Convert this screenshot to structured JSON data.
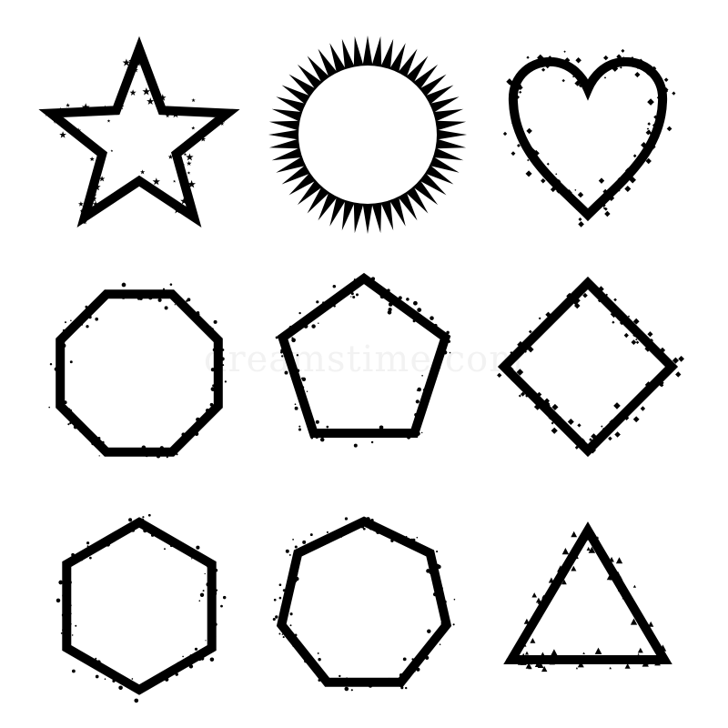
{
  "colors": {
    "background": "#ffffff",
    "stroke": "#000000"
  },
  "watermark": "dreamstime.com",
  "shapes": [
    {
      "name": "star-frame-icon",
      "kind": "star"
    },
    {
      "name": "sunburst-circle-frame-icon",
      "kind": "sunburst"
    },
    {
      "name": "heart-frame-icon",
      "kind": "heart"
    },
    {
      "name": "octagon-frame-icon",
      "kind": "octagon"
    },
    {
      "name": "pentagon-frame-icon",
      "kind": "pentagon"
    },
    {
      "name": "diamond-frame-icon",
      "kind": "diamond"
    },
    {
      "name": "hexagon-frame-icon",
      "kind": "hexagon"
    },
    {
      "name": "heptagon-frame-icon",
      "kind": "heptagon"
    },
    {
      "name": "triangle-frame-icon",
      "kind": "triangle"
    }
  ]
}
